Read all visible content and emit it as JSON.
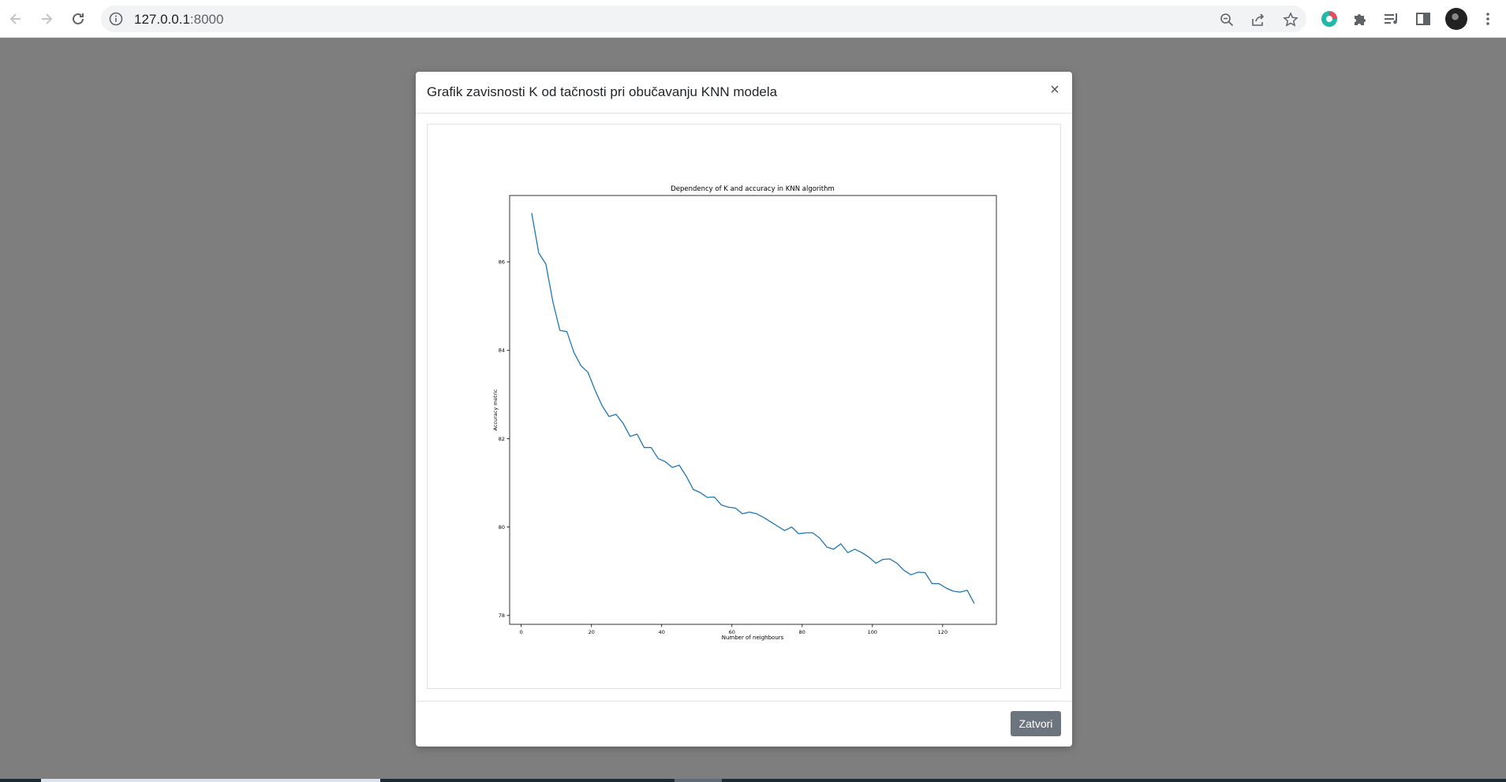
{
  "browser": {
    "url_host": "127.0.0.1",
    "url_port": ":8000",
    "icons": [
      "back-arrow-icon",
      "forward-arrow-icon",
      "reload-icon",
      "info-icon",
      "zoom-icon",
      "share-icon",
      "bookmark-star-icon",
      "extension-colored-icon",
      "puzzle-icon",
      "media-queue-icon",
      "side-panel-icon",
      "profile-avatar"
    ]
  },
  "modal": {
    "title": "Grafik zavisnosti K od tačnosti pri obučavanju KNN modela",
    "close_symbol": "×",
    "footer_button": "Zatvori"
  },
  "chart_data": {
    "type": "line",
    "title": "Dependency of K and accuracy in KNN algorithm",
    "xlabel": "Number of neighbours",
    "ylabel": "Accuracy metric",
    "xlim": [
      -3.3,
      135.3
    ],
    "ylim": [
      77.8,
      87.5
    ],
    "xticks": [
      0,
      20,
      40,
      60,
      80,
      100,
      120
    ],
    "yticks": [
      78,
      80,
      82,
      84,
      86
    ],
    "grid": false,
    "series": [
      {
        "name": "",
        "color": "#1f77b4",
        "x": [
          3,
          5,
          7,
          9,
          11,
          13,
          15,
          17,
          19,
          21,
          23,
          25,
          27,
          29,
          31,
          33,
          35,
          37,
          39,
          41,
          43,
          45,
          47,
          49,
          51,
          53,
          55,
          57,
          59,
          61,
          63,
          65,
          67,
          69,
          71,
          73,
          75,
          77,
          79,
          81,
          83,
          85,
          87,
          89,
          91,
          93,
          95,
          97,
          99,
          101,
          103,
          105,
          107,
          109,
          111,
          113,
          115,
          117,
          119,
          121,
          123,
          125,
          127,
          129
        ],
        "y": [
          87.1,
          86.2,
          85.95,
          85.1,
          84.45,
          84.42,
          83.95,
          83.65,
          83.5,
          83.1,
          82.75,
          82.5,
          82.55,
          82.35,
          82.05,
          82.1,
          81.8,
          81.8,
          81.55,
          81.48,
          81.35,
          81.4,
          81.15,
          80.85,
          80.78,
          80.67,
          80.68,
          80.5,
          80.45,
          80.43,
          80.3,
          80.34,
          80.3,
          80.22,
          80.12,
          80.02,
          79.92,
          80.0,
          79.85,
          79.87,
          79.87,
          79.75,
          79.55,
          79.5,
          79.62,
          79.42,
          79.5,
          79.42,
          79.32,
          79.18,
          79.27,
          79.28,
          79.18,
          79.02,
          78.92,
          78.98,
          78.97,
          78.72,
          78.72,
          78.62,
          78.55,
          78.53,
          78.57,
          78.27
        ]
      }
    ]
  }
}
